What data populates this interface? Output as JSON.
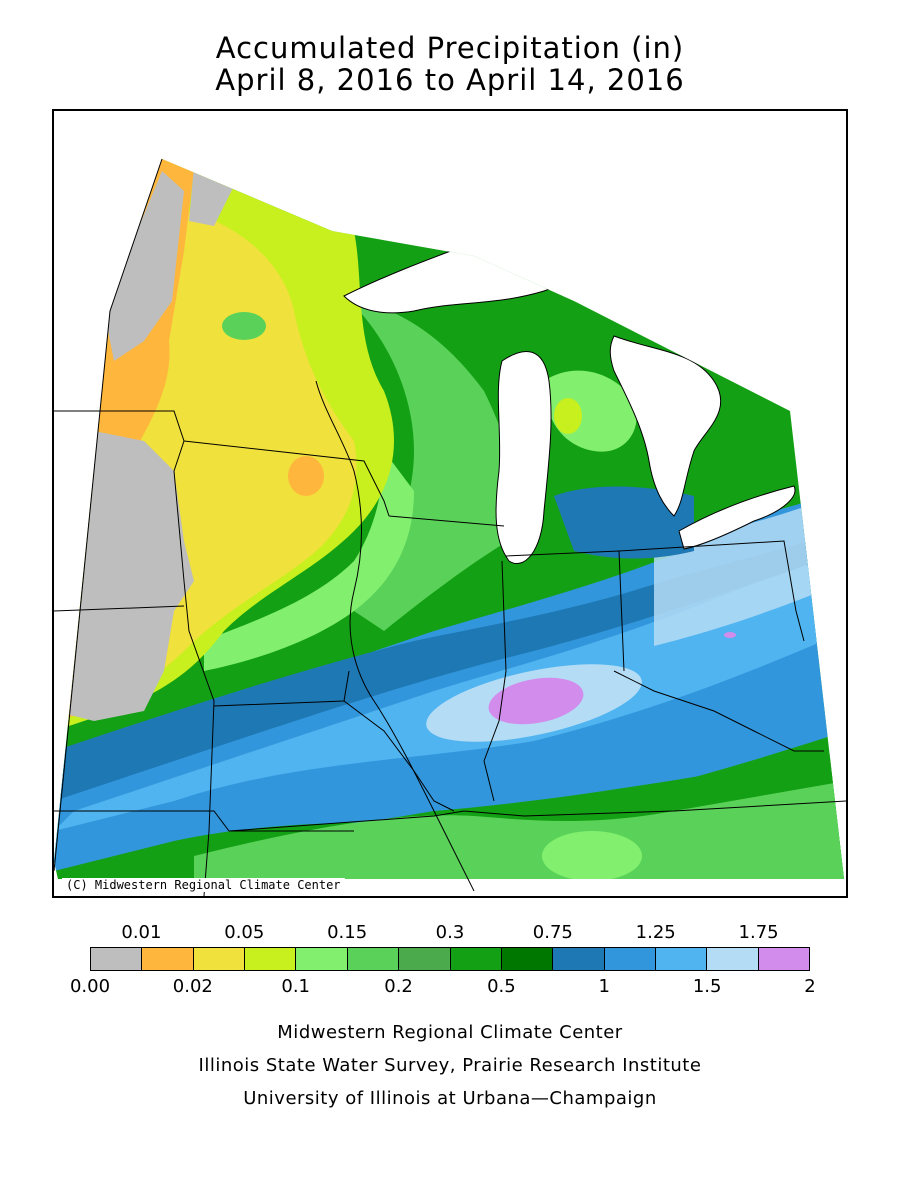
{
  "header": {
    "title_line1": "Accumulated Precipitation (in)",
    "title_line2": "April 8, 2016 to April 14, 2016"
  },
  "map": {
    "copyright": "(C) Midwestern Regional Climate Center",
    "region": "Upper Midwest / Great Lakes"
  },
  "legend": {
    "colors": [
      "#bebebe",
      "#ffb63c",
      "#f0e13c",
      "#c8f01e",
      "#82f06e",
      "#5ad25a",
      "#4baa4b",
      "#14a014",
      "#007800",
      "#1e78b4",
      "#3296dc",
      "#50b4f0",
      "#b4dcf5",
      "#d28ceb"
    ],
    "top_labels": [
      "0.01",
      "0.05",
      "0.15",
      "0.3",
      "0.75",
      "1.25",
      "1.75"
    ],
    "bottom_labels": [
      "0.00",
      "0.02",
      "0.1",
      "0.2",
      "0.5",
      "1",
      "1.5",
      "2"
    ]
  },
  "footer": {
    "line1": "Midwestern Regional Climate Center",
    "line2": "Illinois State Water Survey, Prairie Research Institute",
    "line3": "University of Illinois at Urbana—Champaign"
  }
}
